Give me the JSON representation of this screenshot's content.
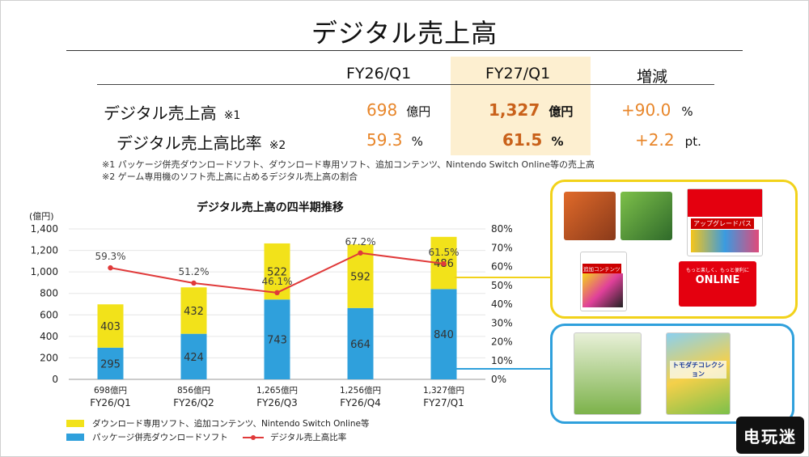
{
  "title": "デジタル売上高",
  "table": {
    "headers": [
      "FY26/Q1",
      "FY27/Q1",
      "増減"
    ],
    "rows": [
      {
        "label": "デジタル売上高",
        "note_mark": "※1",
        "fy26": "698",
        "fy26_unit": "億円",
        "fy27": "1,327",
        "fy27_unit": "億円",
        "change": "+90.0",
        "change_unit": "%"
      },
      {
        "label": "デジタル売上高比率",
        "note_mark": "※2",
        "fy26": "59.3",
        "fy26_unit": "%",
        "fy27": "61.5",
        "fy27_unit": "%",
        "change": "+2.2",
        "change_unit": "pt."
      }
    ],
    "highlight_color": "#fdefd0"
  },
  "notes": [
    "※1 パッケージ併売ダウンロードソフト、ダウンロード専用ソフト、追加コンテンツ、Nintendo Switch Online等の売上高",
    "※2 ゲーム専用機のソフト売上高に占めるデジタル売上高の割合"
  ],
  "chart_data": {
    "type": "bar",
    "stacked": true,
    "title": "デジタル売上高の四半期推移",
    "ylabel": "(億円)",
    "ylim": [
      0,
      1400
    ],
    "y_ticks": [
      "0",
      "200",
      "400",
      "600",
      "800",
      "1,000",
      "1,200",
      "1,400"
    ],
    "y2lim": [
      0,
      80
    ],
    "y2_ticks": [
      "0%",
      "10%",
      "20%",
      "30%",
      "40%",
      "50%",
      "60%",
      "70%",
      "80%"
    ],
    "categories": [
      "FY26/Q1",
      "FY26/Q2",
      "FY26/Q3",
      "FY26/Q4",
      "FY27/Q1"
    ],
    "totals": [
      "698億円",
      "856億円",
      "1,265億円",
      "1,256億円",
      "1,327億円"
    ],
    "series": [
      {
        "name": "パッケージ併売ダウンロードソフト",
        "type": "bar",
        "color": "#2fa0dc",
        "values": [
          295,
          424,
          743,
          664,
          840
        ]
      },
      {
        "name": "ダウンロード専用ソフト、追加コンテンツ、Nintendo Switch Online等",
        "type": "bar",
        "color": "#f2e21a",
        "values": [
          403,
          432,
          522,
          592,
          486
        ]
      },
      {
        "name": "デジタル売上高比率",
        "type": "line",
        "axis": "right",
        "color": "#e03a3a",
        "values": [
          59.3,
          51.2,
          46.1,
          67.2,
          61.5
        ],
        "labels": [
          "59.3%",
          "51.2%",
          "46.1%",
          "67.2%",
          "61.5%"
        ]
      }
    ],
    "grid": true
  },
  "legend": [
    {
      "label": "ダウンロード専用ソフト、追加コンテンツ、Nintendo Switch Online等",
      "color": "#f2e21a",
      "kind": "box"
    },
    {
      "label": "パッケージ併売ダウンロードソフト",
      "color": "#2fa0dc",
      "kind": "box"
    },
    {
      "label": "デジタル売上高比率",
      "color": "#e03a3a",
      "kind": "line"
    }
  ],
  "panels": {
    "top_color": "#f2d21a",
    "bottom_color": "#2fa0dc",
    "upgrade_pass": "アップグレードパス",
    "add_content": "追加コンテンツ",
    "online_tagline": "もっと楽しく、もっと便利に",
    "online_logo": "ONLINE",
    "tomodachi": "トモダチコレクション"
  },
  "watermark": "电玩迷"
}
